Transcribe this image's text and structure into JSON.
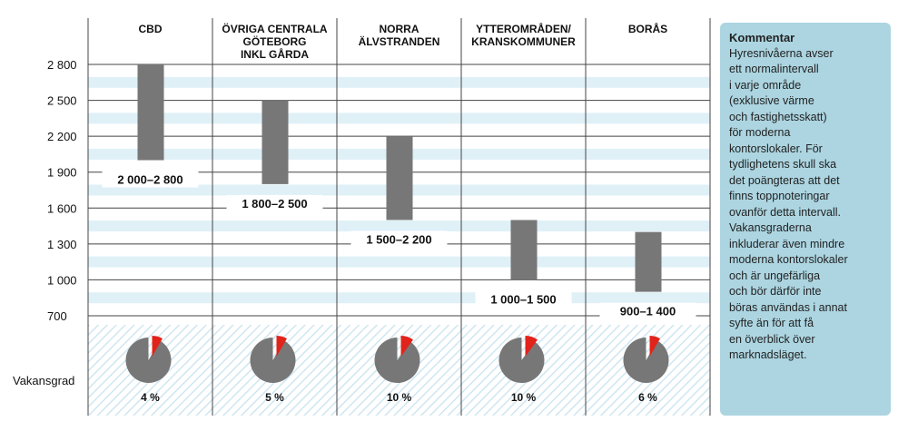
{
  "chart_data": {
    "type": "floating-bar",
    "title": "",
    "ylim": [
      700,
      2800
    ],
    "yticks": [
      2800,
      2500,
      2200,
      1900,
      1600,
      1300,
      1000,
      700
    ],
    "ytick_labels": [
      "2 800",
      "2 500",
      "2 200",
      "1 900",
      "1 600",
      "1 300",
      "1 000",
      "700"
    ],
    "categories": [
      [
        "CBD"
      ],
      [
        "ÖVRIGA CENTRALA",
        "GÖTEBORG",
        "INKL GÅRDA"
      ],
      [
        "NORRA",
        "ÄLVSTRANDEN"
      ],
      [
        "YTTEROMRÅDEN/",
        "KRANSKOMMUNER"
      ],
      [
        "BORÅS"
      ]
    ],
    "ranges": [
      [
        2000,
        2800
      ],
      [
        1800,
        2500
      ],
      [
        1500,
        2200
      ],
      [
        1000,
        1500
      ],
      [
        900,
        1400
      ]
    ],
    "range_labels": [
      "2 000–2 800",
      "1 800–2 500",
      "1 500–2 200",
      "1 000–1 500",
      "900–1 400"
    ],
    "vacancy_label": "Vakansgrad",
    "vacancy": [
      4,
      5,
      10,
      10,
      6
    ],
    "vacancy_labels": [
      "4 %",
      "5 %",
      "10 %",
      "10 %",
      "6 %"
    ],
    "colors": {
      "bar": "#777777",
      "slice": "#e2231a",
      "band": "#dff0f7",
      "box": "#acd5e1"
    }
  },
  "comment": {
    "title": "Kommentar",
    "lines": [
      "Hyresnivåerna avser",
      "ett normalintervall",
      "i varje område",
      "(exklusive värme",
      "och fastighetsskatt)",
      "för moderna",
      "kontorslokaler. För",
      "tydlighetens skull ska",
      "det poängteras att det",
      "finns toppnoteringar",
      "ovanför detta intervall.",
      "Vakansgraderna",
      "inkluderar även mindre",
      "moderna kontorslokaler",
      "och är ungefärliga",
      "och bör därför inte",
      "böras användas i annat",
      "syfte än för att få",
      "en överblick över",
      "marknadsläget."
    ]
  }
}
